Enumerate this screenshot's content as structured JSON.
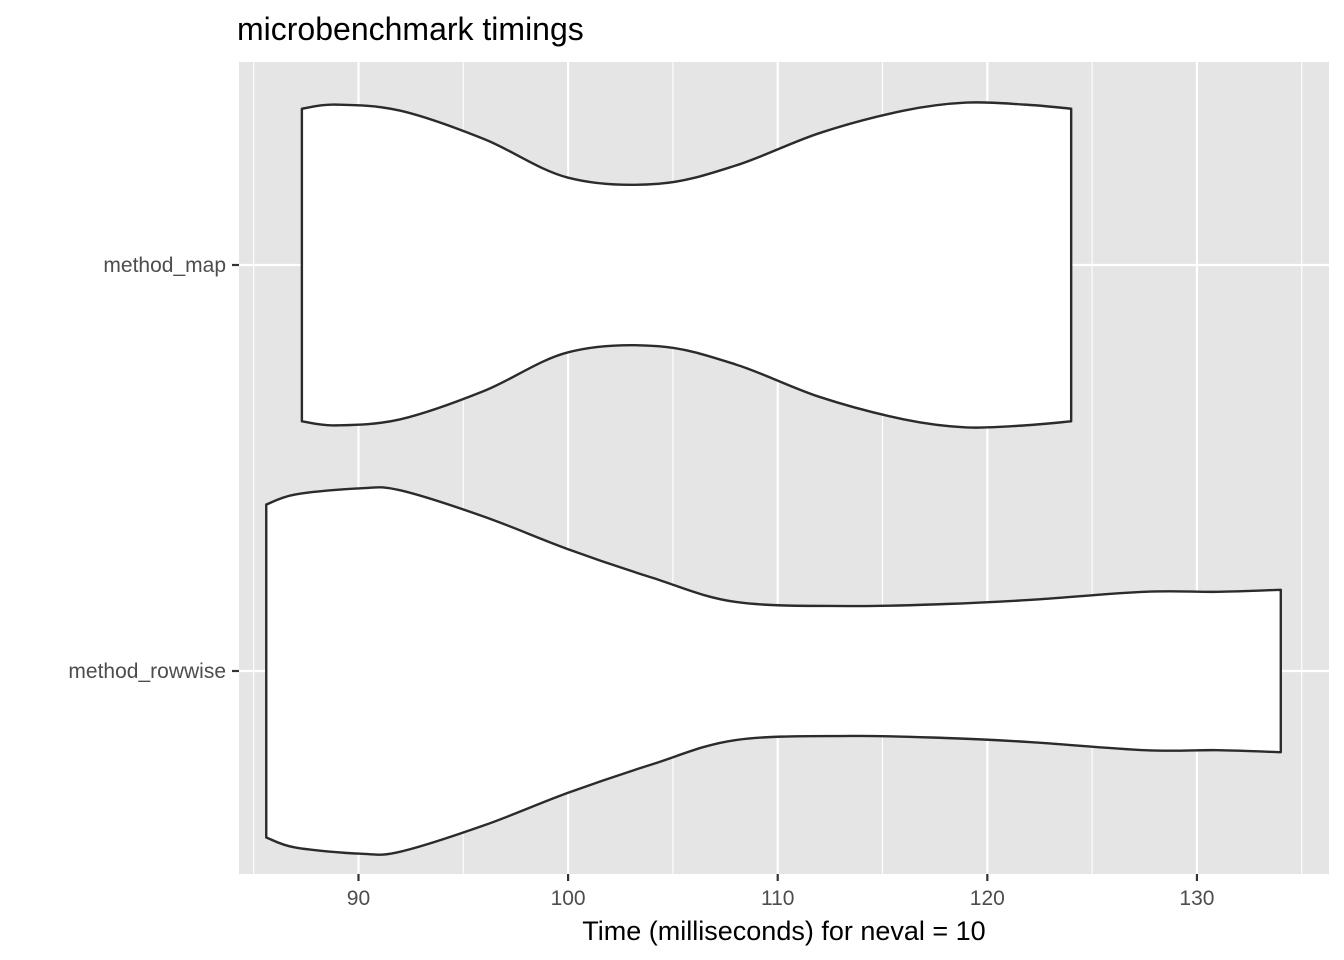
{
  "chart_data": {
    "type": "violin",
    "title": "microbenchmark timings",
    "xlabel": "Time (milliseconds) for neval = 10",
    "ylabel": "",
    "xlim": [
      84.3,
      136.3
    ],
    "x_ticks": [
      90,
      100,
      110,
      120,
      130
    ],
    "x_tick_labels": [
      "90",
      "100",
      "110",
      "120",
      "130"
    ],
    "x_minor_ticks": [
      85,
      95,
      105,
      115,
      125,
      135
    ],
    "categories": [
      "method_map",
      "method_rowwise"
    ],
    "grid": true,
    "legend": "none",
    "colors": {
      "panel": "#e5e5e5",
      "grid": "#ffffff",
      "outline": "#2b2b2b",
      "fill": "#ffffff",
      "tick_text": "#4d4d4d"
    },
    "series": [
      {
        "category": "method_map",
        "density_profile": [
          [
            87.3,
            0.77
          ],
          [
            88.9,
            0.79
          ],
          [
            92,
            0.76
          ],
          [
            96,
            0.62
          ],
          [
            100,
            0.43
          ],
          [
            104.3,
            0.4
          ],
          [
            108,
            0.49
          ],
          [
            112,
            0.65
          ],
          [
            116,
            0.76
          ],
          [
            119,
            0.8
          ],
          [
            121.8,
            0.79
          ],
          [
            124,
            0.77
          ]
        ]
      },
      {
        "category": "method_rowwise",
        "density_profile": [
          [
            85.6,
            0.82
          ],
          [
            87,
            0.87
          ],
          [
            90.1,
            0.9
          ],
          [
            92,
            0.89
          ],
          [
            96,
            0.76
          ],
          [
            100,
            0.6
          ],
          [
            104,
            0.46
          ],
          [
            108,
            0.34
          ],
          [
            113.5,
            0.32
          ],
          [
            118,
            0.33
          ],
          [
            122,
            0.35
          ],
          [
            127.5,
            0.39
          ],
          [
            131,
            0.39
          ],
          [
            134,
            0.4
          ]
        ]
      }
    ]
  }
}
